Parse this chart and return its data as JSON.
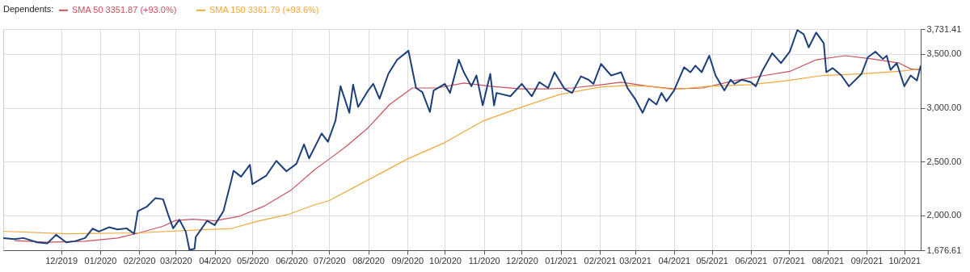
{
  "chart_data": {
    "type": "line",
    "legend_title": "Dependents:",
    "legend": "top left",
    "grid": true,
    "marker": "none",
    "line_style": "solid",
    "xlim": [
      "2019-10-16",
      "2021-10-14"
    ],
    "xticks": [
      {
        "value": "2019-12-01",
        "label": "12/2019"
      },
      {
        "value": "2020-01-01",
        "label": "01/2020"
      },
      {
        "value": "2020-02-01",
        "label": "02/2020"
      },
      {
        "value": "2020-03-01",
        "label": "03/2020"
      },
      {
        "value": "2020-04-01",
        "label": "04/2020"
      },
      {
        "value": "2020-05-01",
        "label": "05/2020"
      },
      {
        "value": "2020-06-01",
        "label": "06/2020"
      },
      {
        "value": "2020-07-01",
        "label": "07/2020"
      },
      {
        "value": "2020-08-01",
        "label": "08/2020"
      },
      {
        "value": "2020-09-01",
        "label": "09/2020"
      },
      {
        "value": "2020-10-01",
        "label": "10/2020"
      },
      {
        "value": "2020-11-01",
        "label": "11/2020"
      },
      {
        "value": "2020-12-01",
        "label": "12/2020"
      },
      {
        "value": "2021-01-01",
        "label": "01/2021"
      },
      {
        "value": "2021-02-01",
        "label": "02/2021"
      },
      {
        "value": "2021-03-01",
        "label": "03/2021"
      },
      {
        "value": "2021-04-01",
        "label": "04/2021"
      },
      {
        "value": "2021-05-01",
        "label": "05/2021"
      },
      {
        "value": "2021-06-01",
        "label": "06/2021"
      },
      {
        "value": "2021-07-01",
        "label": "07/2021"
      },
      {
        "value": "2021-08-01",
        "label": "08/2021"
      },
      {
        "value": "2021-09-01",
        "label": "09/2021"
      },
      {
        "value": "2021-10-01",
        "label": "10/2021"
      }
    ],
    "ylim": [
      1676.61,
      3731.41
    ],
    "yticks": [
      {
        "value": 1676.61,
        "label": "1,676.61"
      },
      {
        "value": 2000,
        "label": "2,000.00"
      },
      {
        "value": 2500,
        "label": "2,500.00"
      },
      {
        "value": 3000,
        "label": "3,000.00"
      },
      {
        "value": 3500,
        "label": "3,500.00"
      },
      {
        "value": 3731.41,
        "label": "3,731.41"
      }
    ],
    "series": [
      {
        "name": "SMA 50 3351.87 (+93.0%)",
        "color": "#c8505a",
        "x": [
          "2019-10-25",
          "2019-11-20",
          "2019-12-20",
          "2020-01-15",
          "2020-02-01",
          "2020-02-20",
          "2020-03-01",
          "2020-03-15",
          "2020-04-01",
          "2020-04-20",
          "2020-05-10",
          "2020-06-01",
          "2020-06-20",
          "2020-07-01",
          "2020-07-15",
          "2020-08-01",
          "2020-08-18",
          "2020-09-05",
          "2020-09-25",
          "2020-10-16",
          "2020-11-06",
          "2020-11-30",
          "2020-12-20",
          "2021-01-10",
          "2021-02-03",
          "2021-02-18",
          "2021-03-12",
          "2021-04-01",
          "2021-04-24",
          "2021-05-19",
          "2021-06-12",
          "2021-07-02",
          "2021-07-23",
          "2021-08-15",
          "2021-09-06",
          "2021-09-27",
          "2021-10-06",
          "2021-10-14"
        ],
        "values": [
          1765,
          1750,
          1760,
          1790,
          1838,
          1900,
          1953,
          1965,
          1950,
          1990,
          2084,
          2238,
          2430,
          2523,
          2646,
          2815,
          3030,
          3184,
          3184,
          3230,
          3200,
          3176,
          3176,
          3184,
          3215,
          3238,
          3200,
          3176,
          3184,
          3253,
          3300,
          3338,
          3446,
          3484,
          3453,
          3415,
          3361,
          3352
        ]
      },
      {
        "name": "SMA 150 3361.79 (+93.6%)",
        "color": "#f0a83c",
        "x": [
          "2019-10-16",
          "2019-12-05",
          "2020-02-01",
          "2020-03-25",
          "2020-04-14",
          "2020-05-05",
          "2020-05-29",
          "2020-06-20",
          "2020-07-01",
          "2020-08-01",
          "2020-09-01",
          "2020-10-01",
          "2020-10-31",
          "2020-12-01",
          "2020-12-31",
          "2021-02-01",
          "2021-02-22",
          "2021-03-12",
          "2021-04-01",
          "2021-04-28",
          "2021-06-01",
          "2021-06-30",
          "2021-07-28",
          "2021-08-26",
          "2021-09-27",
          "2021-10-14"
        ],
        "values": [
          1853,
          1830,
          1838,
          1869,
          1877,
          1946,
          2007,
          2100,
          2138,
          2330,
          2523,
          2677,
          2876,
          3007,
          3123,
          3192,
          3207,
          3200,
          3169,
          3200,
          3215,
          3253,
          3300,
          3315,
          3338,
          3362
        ]
      },
      {
        "color": "#1c3f7c",
        "x": [
          "2019-10-16",
          "2019-10-25",
          "2019-11-01",
          "2019-11-12",
          "2019-11-20",
          "2019-11-27",
          "2019-12-05",
          "2019-12-12",
          "2019-12-20",
          "2019-12-26",
          "2019-12-31",
          "2020-01-08",
          "2020-01-15",
          "2020-01-22",
          "2020-01-28",
          "2020-01-31",
          "2020-02-07",
          "2020-02-14",
          "2020-02-20",
          "2020-02-24",
          "2020-02-28",
          "2020-03-04",
          "2020-03-09",
          "2020-03-12",
          "2020-03-16",
          "2020-03-17",
          "2020-03-20",
          "2020-03-26",
          "2020-04-01",
          "2020-04-08",
          "2020-04-14",
          "2020-04-16",
          "2020-04-22",
          "2020-04-29",
          "2020-05-01",
          "2020-05-12",
          "2020-05-20",
          "2020-05-28",
          "2020-06-05",
          "2020-06-11",
          "2020-06-15",
          "2020-06-25",
          "2020-06-30",
          "2020-07-06",
          "2020-07-10",
          "2020-07-17",
          "2020-07-20",
          "2020-07-24",
          "2020-08-01",
          "2020-08-05",
          "2020-08-10",
          "2020-08-17",
          "2020-08-24",
          "2020-09-02",
          "2020-09-08",
          "2020-09-13",
          "2020-09-19",
          "2020-09-22",
          "2020-10-01",
          "2020-10-05",
          "2020-10-12",
          "2020-10-16",
          "2020-10-22",
          "2020-10-26",
          "2020-10-31",
          "2020-11-06",
          "2020-11-09",
          "2020-11-11",
          "2020-11-22",
          "2020-12-01",
          "2020-12-09",
          "2020-12-15",
          "2020-12-22",
          "2020-12-27",
          "2021-01-04",
          "2021-01-10",
          "2021-01-17",
          "2021-01-23",
          "2021-01-27",
          "2021-02-02",
          "2021-02-10",
          "2021-02-18",
          "2021-02-23",
          "2021-03-01",
          "2021-03-07",
          "2021-03-12",
          "2021-03-18",
          "2021-03-22",
          "2021-03-26",
          "2021-04-01",
          "2021-04-09",
          "2021-04-14",
          "2021-04-18",
          "2021-04-23",
          "2021-04-29",
          "2021-05-04",
          "2021-05-11",
          "2021-05-16",
          "2021-05-19",
          "2021-05-25",
          "2021-06-01",
          "2021-06-05",
          "2021-06-10",
          "2021-06-18",
          "2021-06-25",
          "2021-07-02",
          "2021-07-08",
          "2021-07-13",
          "2021-07-17",
          "2021-07-23",
          "2021-07-29",
          "2021-07-31",
          "2021-08-05",
          "2021-08-12",
          "2021-08-18",
          "2021-08-28",
          "2021-09-02",
          "2021-09-08",
          "2021-09-14",
          "2021-09-17",
          "2021-09-20",
          "2021-09-25",
          "2021-10-01",
          "2021-10-06",
          "2021-10-11",
          "2021-10-14"
        ],
        "values": [
          1790,
          1780,
          1790,
          1750,
          1740,
          1820,
          1750,
          1760,
          1790,
          1877,
          1850,
          1890,
          1870,
          1880,
          1830,
          2040,
          2080,
          2161,
          2150,
          2010,
          1880,
          1960,
          1850,
          1680,
          1690,
          1800,
          1850,
          1950,
          1910,
          2040,
          2315,
          2415,
          2360,
          2470,
          2290,
          2370,
          2507,
          2410,
          2480,
          2660,
          2530,
          2761,
          2684,
          2880,
          3200,
          2953,
          3215,
          3007,
          3161,
          3222,
          3084,
          3315,
          3446,
          3530,
          3184,
          3145,
          2961,
          3161,
          3222,
          3138,
          3446,
          3330,
          3200,
          3300,
          3022,
          3315,
          3022,
          3138,
          3107,
          3222,
          3107,
          3238,
          3184,
          3330,
          3176,
          3138,
          3292,
          3261,
          3222,
          3407,
          3300,
          3330,
          3184,
          3084,
          2953,
          3084,
          3030,
          3138,
          3061,
          3161,
          3376,
          3330,
          3391,
          3330,
          3484,
          3300,
          3161,
          3261,
          3222,
          3261,
          3238,
          3200,
          3338,
          3507,
          3415,
          3522,
          3722,
          3684,
          3561,
          3699,
          3599,
          3330,
          3369,
          3300,
          3200,
          3315,
          3469,
          3522,
          3453,
          3484,
          3353,
          3415,
          3200,
          3300,
          3253,
          3391
        ]
      }
    ]
  }
}
